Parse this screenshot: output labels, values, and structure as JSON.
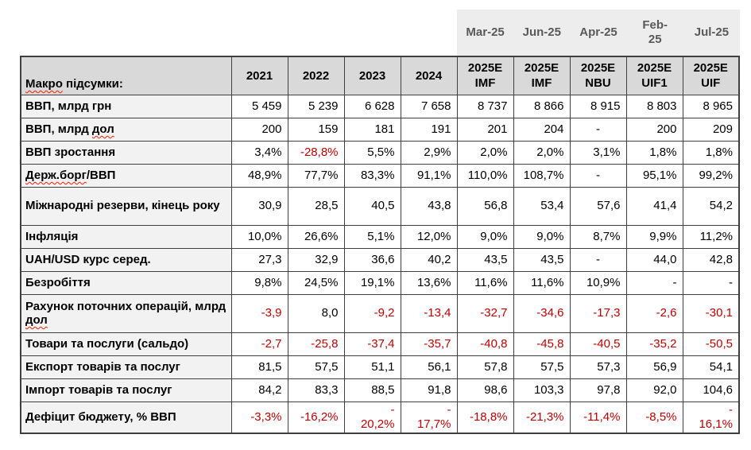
{
  "colors": {
    "header_fill": "#D9D9D9",
    "label_column_fill": "#F2F2F2",
    "band_fill": "#EDEDED",
    "band_text": "#595959",
    "negative_value": "#C00000",
    "grid_border": "#3f3f3f"
  },
  "band": {
    "items": [
      "Mar-25",
      "Jun-25",
      "Apr-25",
      "Feb-\n25",
      "Jul-25"
    ]
  },
  "table": {
    "corner_label": "Макро підсумки:",
    "corner_squiggle": "Макро",
    "year_headers": [
      "2021",
      "2022",
      "2023",
      "2024"
    ],
    "forecast_headers": [
      "2025E\nIMF",
      "2025E\nIMF",
      "2025E\nNBU",
      "2025E\nUIF1",
      "2025E\nUIF"
    ],
    "rows": [
      {
        "label": "ВВП, млрд грн",
        "values": [
          "5 459",
          "5 239",
          "6 628",
          "7 658",
          "8 737",
          "8 866",
          "8 915",
          "8 803",
          "8 965"
        ]
      },
      {
        "label": "ВВП, млрд дол",
        "squiggle": "дол",
        "values": [
          "200",
          "159",
          "181",
          "191",
          "201",
          "204",
          "-",
          "200",
          "209"
        ],
        "center": [
          6
        ]
      },
      {
        "label": "ВВП зростання",
        "values": [
          "3,4%",
          "-28,8%",
          "5,5%",
          "2,9%",
          "2,0%",
          "2,0%",
          "3,1%",
          "1,8%",
          "1,8%"
        ],
        "red": [
          1
        ]
      },
      {
        "label": "Держ.борг/ВВП",
        "squiggle": "Держ.борг",
        "values": [
          "48,9%",
          "77,7%",
          "83,3%",
          "91,1%",
          "110,0%",
          "108,7%",
          "-",
          "95,1%",
          "99,2%"
        ],
        "center": [
          6
        ]
      },
      {
        "label": "Міжнародні резерви, кінець року",
        "tall": true,
        "values": [
          "30,9",
          "28,5",
          "40,5",
          "43,8",
          "56,8",
          "53,4",
          "57,6",
          "41,4",
          "54,2"
        ]
      },
      {
        "label": "Інфляція",
        "values": [
          "10,0%",
          "26,6%",
          "5,1%",
          "12,0%",
          "9,0%",
          "9,0%",
          "8,7%",
          "9,9%",
          "11,2%"
        ]
      },
      {
        "label": "UAH/USD курс серед.",
        "values": [
          "27,3",
          "32,9",
          "36,6",
          "40,2",
          "43,5",
          "43,5",
          "-",
          "44,0",
          "42,8"
        ],
        "center": [
          6
        ]
      },
      {
        "label": "Безробіття",
        "values": [
          "9,8%",
          "24,5%",
          "19,1%",
          "13,6%",
          "11,6%",
          "11,6%",
          "10,9%",
          "-",
          "-"
        ]
      },
      {
        "label": "Рахунок поточних операцій, млрд дол",
        "squiggle": "дол",
        "tall": true,
        "values": [
          "-3,9",
          "8,0",
          "-9,2",
          "-13,4",
          "-32,7",
          "-34,6",
          "-17,3",
          "-2,6",
          "-30,1"
        ],
        "red": [
          0,
          2,
          3,
          4,
          5,
          6,
          7,
          8
        ]
      },
      {
        "label": "Товари та послуги (сальдо)",
        "values": [
          "-2,7",
          "-25,8",
          "-37,4",
          "-35,7",
          "-40,8",
          "-45,8",
          "-40,5",
          "-35,2",
          "-50,5"
        ],
        "red": [
          0,
          1,
          2,
          3,
          4,
          5,
          6,
          7,
          8
        ]
      },
      {
        "label": "Експорт товарів та послуг",
        "values": [
          "81,5",
          "57,5",
          "51,1",
          "56,1",
          "57,8",
          "57,5",
          "57,3",
          "56,9",
          "54,1"
        ]
      },
      {
        "label": "Імпорт товарів та послуг",
        "values": [
          "84,2",
          "83,3",
          "88,5",
          "91,8",
          "98,6",
          "103,3",
          "97,8",
          "92,0",
          "104,6"
        ]
      },
      {
        "label": "Дефіцит бюджету, % ВВП",
        "deficit": true,
        "values": [
          "-3,3%",
          "-16,2%",
          "-\n20,2%",
          "-\n17,7%",
          "-18,8%",
          "-21,3%",
          "-11,4%",
          "-8,5%",
          "-\n16,1%"
        ],
        "red": [
          0,
          1,
          2,
          3,
          4,
          5,
          6,
          7,
          8
        ]
      }
    ]
  }
}
